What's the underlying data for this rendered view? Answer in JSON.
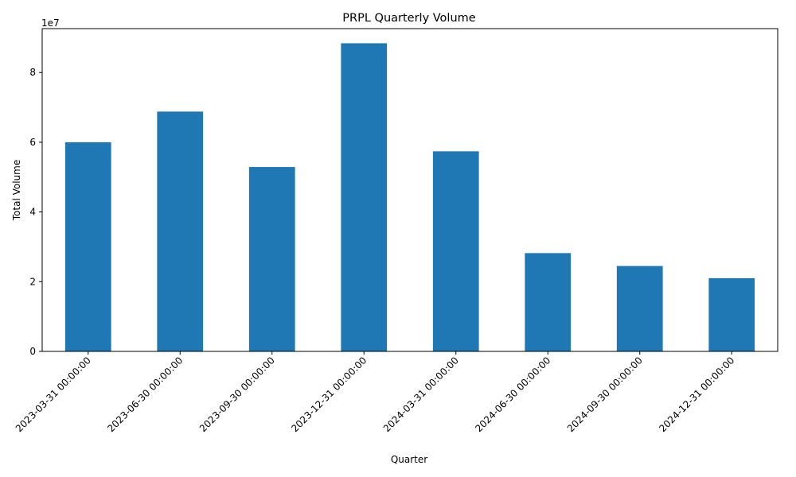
{
  "chart_data": {
    "type": "bar",
    "title": "PRPL Quarterly Volume",
    "xlabel": "Quarter",
    "ylabel": "Total Volume",
    "y_offset_label": "1e7",
    "y_scale": 10000000,
    "categories": [
      "2023-03-31 00:00:00",
      "2023-06-30 00:00:00",
      "2023-09-30 00:00:00",
      "2023-12-31 00:00:00",
      "2024-03-31 00:00:00",
      "2024-06-30 00:00:00",
      "2024-09-30 00:00:00",
      "2024-12-31 00:00:00"
    ],
    "values": [
      60000000,
      68800000,
      52900000,
      88400000,
      57400000,
      28200000,
      24500000,
      21000000
    ],
    "ylim": [
      0,
      92600000
    ],
    "yticks": [
      0,
      2,
      4,
      6,
      8
    ],
    "bar_color": "#1f77b4",
    "grid": false,
    "legend": "none"
  }
}
